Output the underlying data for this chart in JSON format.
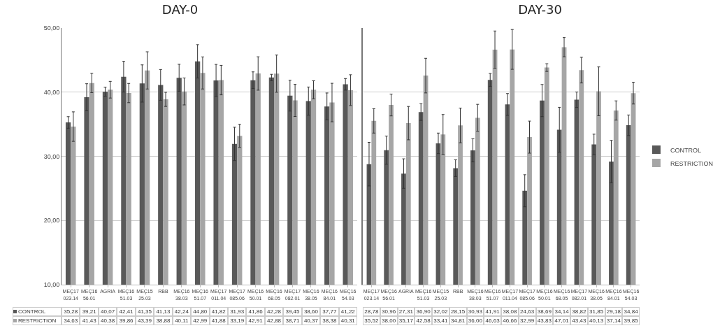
{
  "chart_data": [
    {
      "type": "bar",
      "title": "DAY-0",
      "categories": [
        "MEÇ17 023.14",
        "MEÇ16 56.01",
        "AGRIA",
        "MEÇ16 51.03",
        "MEÇ15 25.03",
        "RBB",
        "MEÇ16 38.03",
        "MEÇ16 51.07",
        "MEÇ17 011.04",
        "MEÇ17 085.06",
        "MEÇ16 50.01",
        "MEÇ16 68.05",
        "MEÇ17 082.01",
        "MEÇ16 38.05",
        "MEÇ16 84.01",
        "MEÇ16 54.03"
      ],
      "series": [
        {
          "name": "CONTROL",
          "color": "#595959",
          "values": [
            35.28,
            39.21,
            40.07,
            42.41,
            41.35,
            41.13,
            42.24,
            44.8,
            41.82,
            31.93,
            41.86,
            42.28,
            39.45,
            38.6,
            37.77,
            41.22
          ],
          "errors": [
            0.9,
            2.1,
            0.7,
            2.4,
            2.9,
            2.4,
            2.1,
            2.6,
            2.5,
            2.6,
            1.3,
            0.5,
            2.4,
            2.2,
            2.1,
            0.9
          ],
          "value_labels": [
            "35,28",
            "39,21",
            "40,07",
            "42,41",
            "41,35",
            "41,13",
            "42,24",
            "44,80",
            "41,82",
            "31,93",
            "41,86",
            "42,28",
            "39,45",
            "38,60",
            "37,77",
            "41,22"
          ]
        },
        {
          "name": "RESTRICTION",
          "color": "#a6a6a6",
          "values": [
            34.63,
            41.43,
            40.38,
            39.86,
            43.39,
            38.88,
            40.11,
            42.99,
            41.88,
            33.19,
            42.91,
            42.88,
            38.71,
            40.37,
            38.38,
            40.31
          ],
          "errors": [
            2.3,
            1.5,
            1.3,
            1.5,
            2.9,
            1.1,
            2.1,
            2.5,
            2.3,
            1.8,
            2.6,
            2.9,
            2.5,
            1.4,
            3.0,
            2.4
          ],
          "value_labels": [
            "34,63",
            "41,43",
            "40,38",
            "39,86",
            "43,39",
            "38,88",
            "40,11",
            "42,99",
            "41,88",
            "33,19",
            "42,91",
            "42,88",
            "38,71",
            "40,37",
            "38,38",
            "40,31"
          ]
        }
      ],
      "ylim": [
        10,
        50
      ],
      "yticks": [
        {
          "value": 10,
          "label": "10,00"
        },
        {
          "value": 20,
          "label": "20,00"
        },
        {
          "value": 30,
          "label": "30,00"
        },
        {
          "value": 40,
          "label": "40,00"
        },
        {
          "value": 50,
          "label": "50,00"
        }
      ],
      "grid": "y",
      "legend": "bottom left"
    },
    {
      "type": "bar",
      "title": "DAY-30",
      "categories": [
        "MEÇ17 023.14",
        "MEÇ16 56.01",
        "AGRIA",
        "MEÇ16 51.03",
        "MEÇ15 25.03",
        "RBB",
        "MEÇ16 38.03",
        "MEÇ16 51.07",
        "MEÇ17 011.04",
        "MEÇ17 085.06",
        "MEÇ16 50.01",
        "MEÇ16 68.05",
        "MEÇ17 082.01",
        "MEÇ16 38.05",
        "MEÇ16 84.01",
        "MEÇ16 54.03"
      ],
      "series": [
        {
          "name": "CONTROL",
          "color": "#595959",
          "values": [
            28.78,
            30.96,
            27.31,
            36.9,
            32.02,
            28.15,
            30.93,
            41.91,
            38.08,
            24.63,
            38.69,
            34.14,
            38.82,
            31.85,
            29.18,
            34.84
          ],
          "errors": [
            3.4,
            2.2,
            2.3,
            1.3,
            1.6,
            1.3,
            1.8,
            1.0,
            1.7,
            2.5,
            2.5,
            3.5,
            1.2,
            1.6,
            3.3,
            1.6
          ],
          "value_labels": [
            "28,78",
            "30,96",
            "27,31",
            "36,90",
            "32,02",
            "28,15",
            "30,93",
            "41,91",
            "38,08",
            "24,63",
            "38,69",
            "34,14",
            "38,82",
            "31,85",
            "29,18",
            "34,84"
          ]
        },
        {
          "name": "RESTRICTION",
          "color": "#a6a6a6",
          "values": [
            35.52,
            38.0,
            35.17,
            42.58,
            33.41,
            34.81,
            36.0,
            46.63,
            46.66,
            32.99,
            43.83,
            47.01,
            43.43,
            40.13,
            37.14,
            39.85
          ],
          "errors": [
            1.9,
            1.7,
            2.6,
            2.7,
            3.1,
            2.7,
            2.1,
            2.9,
            3.1,
            2.5,
            0.6,
            1.5,
            2.0,
            3.8,
            1.5,
            1.7
          ],
          "value_labels": [
            "35,52",
            "38,00",
            "35,17",
            "42,58",
            "33,41",
            "34,81",
            "36,00",
            "46,63",
            "46,66",
            "32,99",
            "43,83",
            "47,01",
            "43,43",
            "40,13",
            "37,14",
            "39,85"
          ]
        }
      ],
      "ylim": [
        10,
        50
      ],
      "yticks": [
        10,
        20,
        30,
        40,
        50
      ],
      "grid": "y",
      "legend": "right",
      "tick_labels": "x"
    }
  ]
}
